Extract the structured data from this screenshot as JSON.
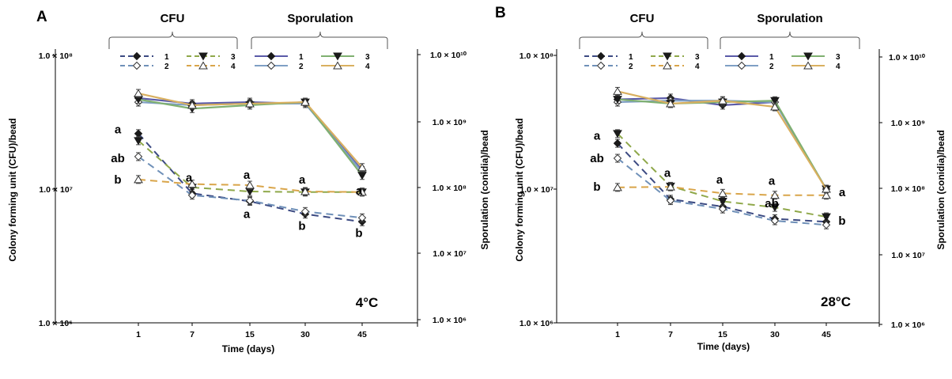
{
  "figure": {
    "panels": [
      "A",
      "B"
    ],
    "xlabel": "Time (days)",
    "ylabel_left": "Colony forming unit (CFU)/bead",
    "ylabel_right": "Sporulation (conidia)/bead",
    "group_cfu": "CFU",
    "group_spor": "Sporulation"
  },
  "series_style": {
    "1": {
      "line_color_cfu": "#3c4a82",
      "line_color_spor": "#5a5aa8",
      "marker": "filled-diamond"
    },
    "2": {
      "line_color_cfu": "#6f90b8",
      "line_color_spor": "#7f9fc4",
      "marker": "open-diamond"
    },
    "3": {
      "line_color_cfu": "#8fa84a",
      "line_color_spor": "#7fb070",
      "marker": "filled-triangle-down"
    },
    "4": {
      "line_color_cfu": "#d9a54a",
      "line_color_spor": "#d9b060",
      "marker": "open-triangle-up"
    }
  },
  "chart_data": [
    {
      "type": "line",
      "panel": "A",
      "temperature": "4°C",
      "xlabel": "Time (days)",
      "ylabel": "Colony forming unit (CFU)/bead",
      "ylabel_right": "Sporulation (conidia)/bead",
      "categories": [
        "1",
        "7",
        "15",
        "30",
        "45"
      ],
      "yscale": "log",
      "ylim": [
        1000000,
        100000000
      ],
      "ylim_right": [
        1000000,
        10000000000
      ],
      "y_ticks_left": [
        "1.0 × 10⁸",
        "1.0 × 10⁷",
        "1.0 × 10⁶"
      ],
      "y_ticks_right": [
        "1.0 × 10¹⁰",
        "1.0 × 10⁹",
        "1.0 × 10⁸",
        "1.0 × 10⁷",
        "1.0 × 10⁶"
      ],
      "series": [
        {
          "name": "1",
          "group": "CFU",
          "values": [
            26000000,
            9300000,
            8100000,
            6500000,
            5700000
          ]
        },
        {
          "name": "2",
          "group": "CFU",
          "values": [
            17500000,
            9000000,
            8200000,
            6800000,
            6100000
          ]
        },
        {
          "name": "3",
          "group": "CFU",
          "values": [
            23000000,
            10300000,
            9600000,
            9500000,
            9500000
          ]
        },
        {
          "name": "4",
          "group": "CFU",
          "values": [
            11800000,
            10900000,
            10700000,
            9600000,
            9500000
          ]
        },
        {
          "name": "1",
          "group": "Sporulation",
          "values": [
            2300000000,
            1900000000,
            2000000000,
            1900000000,
            190000000
          ]
        },
        {
          "name": "2",
          "group": "Sporulation",
          "values": [
            2000000000,
            1800000000,
            1900000000,
            1900000000,
            180000000
          ]
        },
        {
          "name": "3",
          "group": "Sporulation",
          "values": [
            2200000000,
            1600000000,
            1800000000,
            2000000000,
            160000000
          ]
        },
        {
          "name": "4",
          "group": "Sporulation",
          "values": [
            2700000000,
            1800000000,
            1900000000,
            2000000000,
            210000000
          ]
        }
      ],
      "annotations": [
        {
          "text": "a",
          "x": "1",
          "y": 28000000
        },
        {
          "text": "ab",
          "x": "1",
          "y": 17000000
        },
        {
          "text": "b",
          "x": "1",
          "y": 11800000
        },
        {
          "text": "a",
          "x": "7",
          "y": 12200000
        },
        {
          "text": "a",
          "x": "15",
          "y": 12800000
        },
        {
          "text": "a",
          "x": "15",
          "y": 6500000
        },
        {
          "text": "a",
          "x": "30",
          "y": 11800000
        },
        {
          "text": "b",
          "x": "30",
          "y": 5300000
        },
        {
          "text": "a",
          "x": "45",
          "y": 9700000
        },
        {
          "text": "b",
          "x": "45",
          "y": 4700000
        }
      ]
    },
    {
      "type": "line",
      "panel": "B",
      "temperature": "28°C",
      "xlabel": "Time (days)",
      "ylabel": "Colony forming unit (CFU)/bead",
      "ylabel_right": "Sporulation (conidia)/bead",
      "categories": [
        "1",
        "7",
        "15",
        "30",
        "45"
      ],
      "yscale": "log",
      "ylim": [
        1000000,
        100000000
      ],
      "ylim_right": [
        1000000,
        10000000000
      ],
      "y_ticks_left": [
        "1.0 × 10⁸",
        "1.0 × 10⁷",
        "1.0 × 10⁶"
      ],
      "y_ticks_right": [
        "1.0 × 10¹⁰",
        "1.0 × 10⁹",
        "1.0 × 10⁸",
        "1.0 × 10⁷",
        "1.0 × 10⁶"
      ],
      "series": [
        {
          "name": "1",
          "group": "CFU",
          "values": [
            22000000,
            8400000,
            7400000,
            6000000,
            5700000
          ]
        },
        {
          "name": "2",
          "group": "CFU",
          "values": [
            17000000,
            8200000,
            7100000,
            5800000,
            5400000
          ]
        },
        {
          "name": "3",
          "group": "CFU",
          "values": [
            26000000,
            10500000,
            8100000,
            7300000,
            6200000
          ]
        },
        {
          "name": "4",
          "group": "CFU",
          "values": [
            10300000,
            10400000,
            9300000,
            9000000,
            9000000
          ]
        },
        {
          "name": "1",
          "group": "Sporulation",
          "values": [
            2200000000,
            2300000000,
            1800000000,
            2000000000,
            100000000
          ]
        },
        {
          "name": "2",
          "group": "Sporulation",
          "values": [
            2000000000,
            2100000000,
            2100000000,
            2000000000,
            100000000
          ]
        },
        {
          "name": "3",
          "group": "Sporulation",
          "values": [
            2200000000,
            1900000000,
            2000000000,
            2100000000,
            100000000
          ]
        },
        {
          "name": "4",
          "group": "Sporulation",
          "values": [
            2900000000,
            1900000000,
            2100000000,
            1700000000,
            100000000
          ]
        }
      ],
      "annotations": [
        {
          "text": "a",
          "x": "1",
          "y": 25000000
        },
        {
          "text": "ab",
          "x": "1",
          "y": 17000000
        },
        {
          "text": "b",
          "x": "1",
          "y": 10400000
        },
        {
          "text": "a",
          "x": "7",
          "y": 13200000
        },
        {
          "text": "a",
          "x": "15",
          "y": 11800000
        },
        {
          "text": "a",
          "x": "30",
          "y": 11500000
        },
        {
          "text": "ab",
          "x": "30",
          "y": 7800000
        },
        {
          "text": "a",
          "x": "45",
          "y": 9500000
        },
        {
          "text": "b",
          "x": "45",
          "y": 5800000
        }
      ]
    }
  ]
}
